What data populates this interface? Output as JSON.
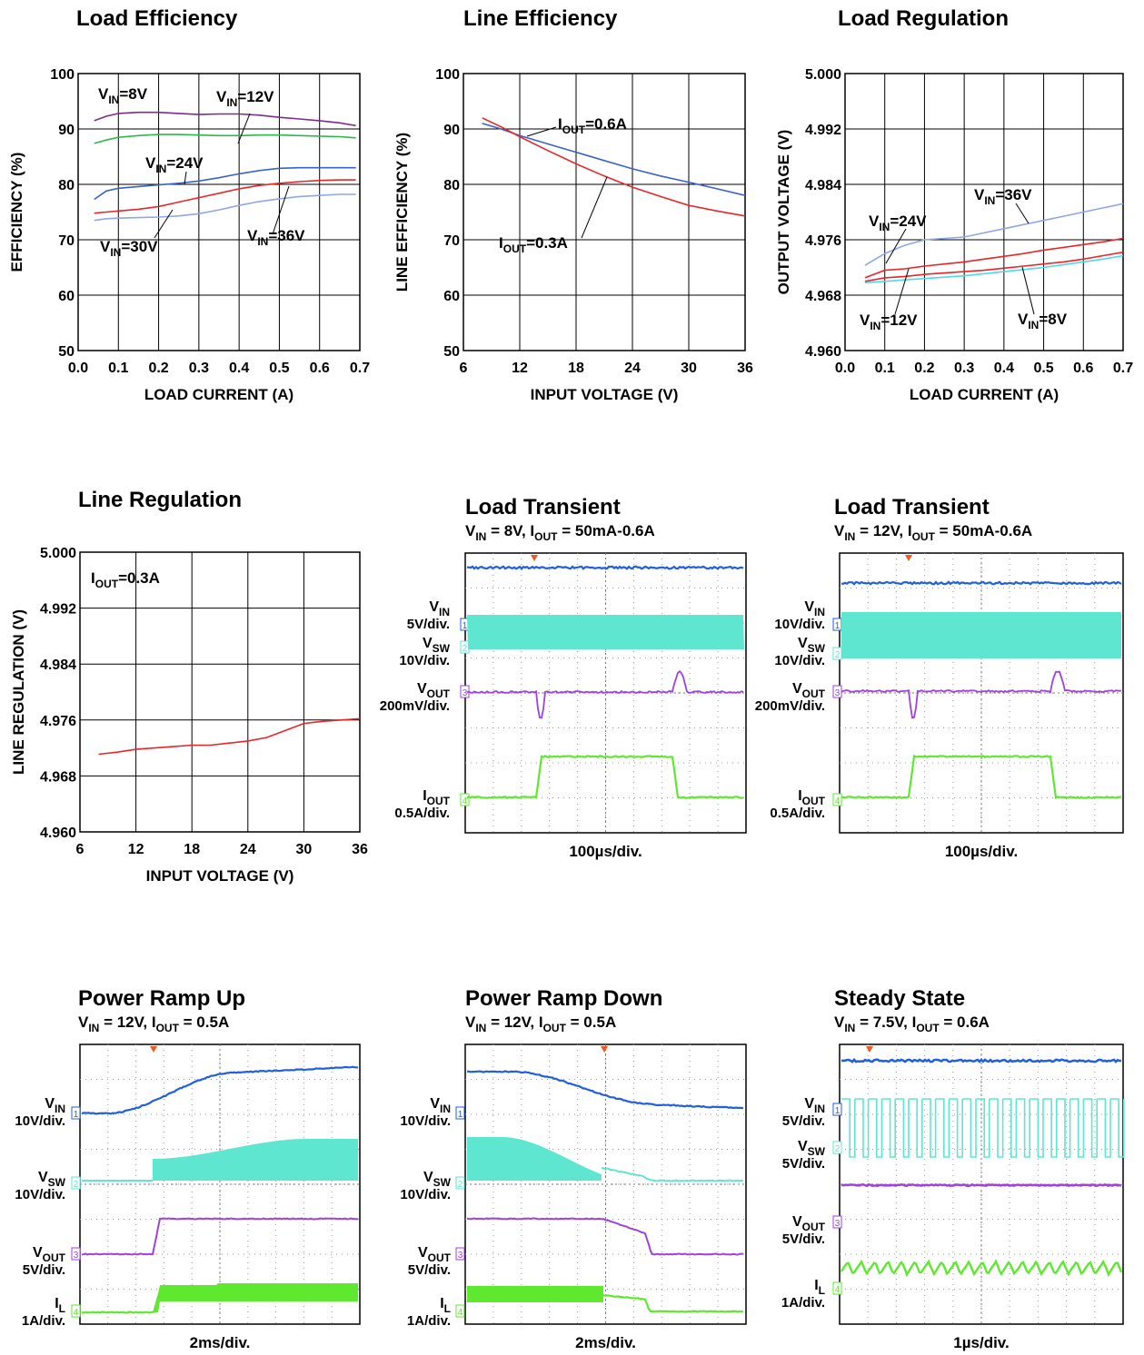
{
  "colors": {
    "purple": "#7B2D8E",
    "green": "#2EB84A",
    "blue": "#3A63C8",
    "red": "#E8262A",
    "lightblue": "#8FA7E8",
    "cyan": "#4FD8E6",
    "red2": "#E8262A",
    "ch1": "#1F5FE0",
    "ch2": "#5FE6D0",
    "ch3": "#A040E0",
    "ch4": "#5FE830",
    "trig": "#F05A1E"
  },
  "chart_data": [
    {
      "id": "load-efficiency",
      "type": "line",
      "title": "Load Efficiency",
      "xlabel": "LOAD CURRENT (A)",
      "ylabel": "EFFICIENCY (%)",
      "xlim": [
        0.0,
        0.7
      ],
      "ylim": [
        50,
        100
      ],
      "xticks": [
        "0.0",
        "0.1",
        "0.2",
        "0.3",
        "0.4",
        "0.5",
        "0.6",
        "0.7"
      ],
      "yticks": [
        "50",
        "60",
        "70",
        "80",
        "90",
        "100"
      ],
      "grid": true,
      "series": [
        {
          "name": "VIN=8V",
          "color": "purple",
          "x": [
            0.04,
            0.07,
            0.1,
            0.15,
            0.2,
            0.25,
            0.3,
            0.35,
            0.4,
            0.45,
            0.5,
            0.55,
            0.6,
            0.65,
            0.69
          ],
          "y": [
            91.5,
            92.3,
            92.8,
            93.0,
            93.0,
            92.8,
            92.6,
            92.7,
            92.7,
            92.5,
            92.1,
            91.8,
            91.5,
            91.1,
            90.6
          ]
        },
        {
          "name": "VIN=12V",
          "color": "green",
          "x": [
            0.04,
            0.07,
            0.1,
            0.15,
            0.2,
            0.25,
            0.3,
            0.35,
            0.4,
            0.45,
            0.5,
            0.55,
            0.6,
            0.65,
            0.69
          ],
          "y": [
            87.4,
            88.0,
            88.5,
            88.8,
            89.0,
            89.0,
            88.9,
            88.8,
            88.8,
            88.9,
            88.9,
            88.8,
            88.7,
            88.6,
            88.4
          ]
        },
        {
          "name": "VIN=24V",
          "color": "blue",
          "x": [
            0.04,
            0.07,
            0.1,
            0.15,
            0.2,
            0.25,
            0.3,
            0.35,
            0.4,
            0.45,
            0.5,
            0.55,
            0.6,
            0.65,
            0.69
          ],
          "y": [
            77.3,
            78.8,
            79.3,
            79.6,
            79.9,
            80.2,
            80.6,
            81.2,
            81.9,
            82.5,
            82.9,
            83.0,
            83.0,
            83.0,
            83.0
          ]
        },
        {
          "name": "VIN=30V",
          "color": "red",
          "x": [
            0.04,
            0.07,
            0.1,
            0.15,
            0.2,
            0.25,
            0.3,
            0.35,
            0.4,
            0.45,
            0.5,
            0.55,
            0.6,
            0.65,
            0.69
          ],
          "y": [
            74.8,
            75.0,
            75.2,
            75.5,
            76.0,
            76.8,
            77.6,
            78.4,
            79.2,
            79.8,
            80.2,
            80.5,
            80.7,
            80.8,
            80.8
          ]
        },
        {
          "name": "VIN=36V",
          "color": "lightblue",
          "x": [
            0.04,
            0.07,
            0.1,
            0.15,
            0.2,
            0.25,
            0.3,
            0.35,
            0.4,
            0.45,
            0.5,
            0.55,
            0.6,
            0.65,
            0.69
          ],
          "y": [
            73.5,
            73.8,
            73.9,
            74.0,
            74.1,
            74.3,
            74.7,
            75.4,
            76.2,
            76.9,
            77.4,
            77.8,
            78.0,
            78.2,
            78.2
          ]
        }
      ],
      "annotations": [
        {
          "base": "V",
          "sub": "IN",
          "text": "=8V"
        },
        {
          "base": "V",
          "sub": "IN",
          "text": "=12V"
        },
        {
          "base": "V",
          "sub": "IN",
          "text": "=24V"
        },
        {
          "base": "V",
          "sub": "IN",
          "text": "=30V"
        },
        {
          "base": "V",
          "sub": "IN",
          "text": "=36V"
        }
      ]
    },
    {
      "id": "line-efficiency",
      "type": "line",
      "title": "Line Efficiency",
      "xlabel": "INPUT  VOLTAGE (V)",
      "ylabel": "LINE EFFICIENCY (%)",
      "xlim": [
        6,
        36
      ],
      "ylim": [
        50,
        100
      ],
      "xticks": [
        "6",
        "12",
        "18",
        "24",
        "30",
        "36"
      ],
      "yticks": [
        "50",
        "60",
        "70",
        "80",
        "90",
        "100"
      ],
      "grid": true,
      "series": [
        {
          "name": "IOUT=0.6A",
          "color": "blue",
          "x": [
            8,
            10,
            12,
            15,
            18,
            21,
            24,
            27,
            30,
            33,
            36
          ],
          "y": [
            91.0,
            90.0,
            88.8,
            87.3,
            85.8,
            84.3,
            82.8,
            81.5,
            80.4,
            79.2,
            78.0
          ]
        },
        {
          "name": "IOUT=0.3A",
          "color": "red",
          "x": [
            8,
            10,
            12,
            15,
            18,
            21,
            24,
            27,
            30,
            33,
            36
          ],
          "y": [
            92.0,
            90.4,
            88.6,
            86.1,
            83.7,
            81.5,
            79.5,
            77.8,
            76.2,
            75.2,
            74.3
          ]
        }
      ],
      "annotations": [
        {
          "base": "I",
          "sub": "OUT",
          "text": "=0.6A"
        },
        {
          "base": "I",
          "sub": "OUT",
          "text": "=0.3A"
        }
      ]
    },
    {
      "id": "load-regulation",
      "type": "line",
      "title": "Load Regulation",
      "xlabel": "LOAD CURRENT (A)",
      "ylabel": "OUTPUT VOLTAGE (V)",
      "xlim": [
        0.0,
        0.7
      ],
      "ylim": [
        4.96,
        5.0
      ],
      "xticks": [
        "0.0",
        "0.1",
        "0.2",
        "0.3",
        "0.4",
        "0.5",
        "0.6",
        "0.7"
      ],
      "yticks": [
        "4.960",
        "4.968",
        "4.976",
        "4.984",
        "4.992",
        "5.000"
      ],
      "grid": true,
      "series": [
        {
          "name": "VIN=36V",
          "color": "lightblue",
          "x": [
            0.05,
            0.1,
            0.15,
            0.2,
            0.25,
            0.3,
            0.35,
            0.4,
            0.45,
            0.5,
            0.55,
            0.6,
            0.65,
            0.7
          ],
          "y": [
            4.9723,
            4.974,
            4.9752,
            4.976,
            4.9762,
            4.9764,
            4.977,
            4.9776,
            4.9782,
            4.9788,
            4.9794,
            4.98,
            4.9806,
            4.9812
          ]
        },
        {
          "name": "VIN=24V",
          "color": "red",
          "x": [
            0.05,
            0.1,
            0.15,
            0.2,
            0.25,
            0.3,
            0.35,
            0.4,
            0.45,
            0.5,
            0.55,
            0.6,
            0.65,
            0.7
          ],
          "y": [
            4.9705,
            4.9716,
            4.9718,
            4.9722,
            4.9725,
            4.9728,
            4.9732,
            4.9736,
            4.974,
            4.9745,
            4.9749,
            4.9753,
            4.9757,
            4.9762
          ]
        },
        {
          "name": "VIN=12V",
          "color": "red2",
          "x": [
            0.05,
            0.1,
            0.15,
            0.2,
            0.25,
            0.3,
            0.35,
            0.4,
            0.45,
            0.5,
            0.55,
            0.6,
            0.65,
            0.7
          ],
          "y": [
            4.97,
            4.9705,
            4.9707,
            4.971,
            4.9712,
            4.9714,
            4.9716,
            4.9719,
            4.9722,
            4.9725,
            4.9728,
            4.9732,
            4.9737,
            4.9742
          ]
        },
        {
          "name": "VIN=8V",
          "color": "cyan",
          "x": [
            0.05,
            0.1,
            0.15,
            0.2,
            0.25,
            0.3,
            0.35,
            0.4,
            0.45,
            0.5,
            0.55,
            0.6,
            0.65,
            0.7
          ],
          "y": [
            4.9698,
            4.97,
            4.9702,
            4.9704,
            4.9706,
            4.9708,
            4.9711,
            4.9714,
            4.9717,
            4.972,
            4.9724,
            4.9728,
            4.9732,
            4.9737
          ]
        }
      ],
      "annotations": [
        {
          "base": "V",
          "sub": "IN",
          "text": "=36V"
        },
        {
          "base": "V",
          "sub": "IN",
          "text": "=24V"
        },
        {
          "base": "V",
          "sub": "IN",
          "text": "=12V"
        },
        {
          "base": "V",
          "sub": "IN",
          "text": "=8V"
        }
      ]
    },
    {
      "id": "line-regulation",
      "type": "line",
      "title": "Line Regulation",
      "xlabel": "INPUT VOLTAGE (V)",
      "ylabel": "LINE REGULATION (V)",
      "xlim": [
        6,
        36
      ],
      "ylim": [
        4.96,
        5.0
      ],
      "xticks": [
        "6",
        "12",
        "18",
        "24",
        "30",
        "36"
      ],
      "yticks": [
        "4.960",
        "4.968",
        "4.976",
        "4.984",
        "4.992",
        "5.000"
      ],
      "grid": true,
      "series": [
        {
          "name": "IOUT=0.3A",
          "color": "red",
          "x": [
            8,
            10,
            12,
            14,
            16,
            18,
            20,
            22,
            24,
            26,
            28,
            30,
            32,
            34,
            36
          ],
          "y": [
            4.9711,
            4.9714,
            4.9718,
            4.972,
            4.9722,
            4.9724,
            4.9724,
            4.9727,
            4.973,
            4.9735,
            4.9745,
            4.9755,
            4.9758,
            4.976,
            4.9762
          ]
        }
      ],
      "annotations": [
        {
          "base": "I",
          "sub": "OUT",
          "text": "=0.3A"
        }
      ]
    }
  ],
  "scopes": [
    {
      "id": "load-transient-8v",
      "title": "Load Transient",
      "subtitle": [
        {
          "b": "V",
          "s": "IN"
        },
        {
          "t": " = 8V, "
        },
        {
          "b": "I",
          "s": "OUT"
        },
        {
          "t": " = 50mA-0.6A"
        }
      ],
      "timebase": "100µs/div.",
      "labels": [
        {
          "base": "V",
          "sub": "IN",
          "scale": "5V/div."
        },
        {
          "base": "V",
          "sub": "SW",
          "scale": "10V/div."
        },
        {
          "base": "V",
          "sub": "OUT",
          "scale": "200mV/div."
        },
        {
          "base": "I",
          "sub": "OUT",
          "scale": "0.5A/div."
        }
      ],
      "markers": [
        "1",
        "2",
        "3",
        "4"
      ]
    },
    {
      "id": "load-transient-12v",
      "title": "Load Transient",
      "subtitle": [
        {
          "b": "V",
          "s": "IN"
        },
        {
          "t": " = 12V, "
        },
        {
          "b": "I",
          "s": "OUT"
        },
        {
          "t": " = 50mA-0.6A"
        }
      ],
      "timebase": "100µs/div.",
      "labels": [
        {
          "base": "V",
          "sub": "IN",
          "scale": "10V/div."
        },
        {
          "base": "V",
          "sub": "SW",
          "scale": "10V/div."
        },
        {
          "base": "V",
          "sub": "OUT",
          "scale": "200mV/div."
        },
        {
          "base": "I",
          "sub": "OUT",
          "scale": "0.5A/div."
        }
      ],
      "markers": [
        "1",
        "2",
        "3",
        "4"
      ]
    },
    {
      "id": "power-ramp-up",
      "title": "Power Ramp Up",
      "subtitle": [
        {
          "b": "V",
          "s": "IN"
        },
        {
          "t": " = 12V, "
        },
        {
          "b": "I",
          "s": "OUT"
        },
        {
          "t": " = 0.5A"
        }
      ],
      "timebase": "2ms/div.",
      "labels": [
        {
          "base": "V",
          "sub": "IN",
          "scale": "10V/div."
        },
        {
          "base": "V",
          "sub": "SW",
          "scale": "10V/div."
        },
        {
          "base": "V",
          "sub": "OUT",
          "scale": "5V/div."
        },
        {
          "base": "I",
          "sub": "L",
          "scale": "1A/div."
        }
      ],
      "markers": [
        "1",
        "2",
        "3",
        "4"
      ]
    },
    {
      "id": "power-ramp-down",
      "title": "Power Ramp Down",
      "subtitle": [
        {
          "b": "V",
          "s": "IN"
        },
        {
          "t": " = 12V, "
        },
        {
          "b": "I",
          "s": "OUT"
        },
        {
          "t": " = 0.5A"
        }
      ],
      "timebase": "2ms/div.",
      "labels": [
        {
          "base": "V",
          "sub": "IN",
          "scale": "10V/div."
        },
        {
          "base": "V",
          "sub": "SW",
          "scale": "10V/div."
        },
        {
          "base": "V",
          "sub": "OUT",
          "scale": "5V/div."
        },
        {
          "base": "I",
          "sub": "L",
          "scale": "1A/div."
        }
      ],
      "markers": [
        "1",
        "2",
        "3",
        "4"
      ]
    },
    {
      "id": "steady-state",
      "title": "Steady State",
      "subtitle": [
        {
          "b": "V",
          "s": "IN"
        },
        {
          "t": " = 7.5V, "
        },
        {
          "b": "I",
          "s": "OUT"
        },
        {
          "t": " = 0.6A"
        }
      ],
      "timebase": "1µs/div.",
      "labels": [
        {
          "base": "V",
          "sub": "IN",
          "scale": "5V/div."
        },
        {
          "base": "V",
          "sub": "SW",
          "scale": "5V/div."
        },
        {
          "base": "V",
          "sub": "OUT",
          "scale": "5V/div."
        },
        {
          "base": "I",
          "sub": "L",
          "scale": "1A/div."
        }
      ],
      "markers": [
        "1",
        "2",
        "3",
        "4"
      ]
    }
  ]
}
